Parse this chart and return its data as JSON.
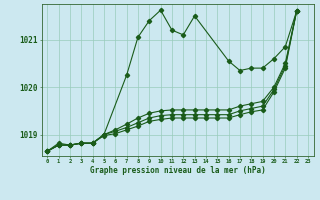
{
  "title": "Graphe pression niveau de la mer (hPa)",
  "background_color": "#cce8f0",
  "grid_color": "#99ccbb",
  "line_color": "#1a5c1a",
  "ylim": [
    1018.55,
    1021.75
  ],
  "xlim": [
    -0.5,
    23.5
  ],
  "yticks": [
    1019,
    1020,
    1021
  ],
  "xlabel_color": "#1a5c1a",
  "series1_x": [
    0,
    1,
    2,
    3,
    4,
    5,
    7,
    8,
    9,
    10,
    11,
    12,
    13,
    16,
    17,
    18,
    19,
    20,
    21,
    22
  ],
  "series1_y": [
    1018.65,
    1018.82,
    1018.78,
    1018.82,
    1018.82,
    1019.0,
    1020.25,
    1021.05,
    1021.4,
    1021.62,
    1021.2,
    1021.1,
    1021.5,
    1020.55,
    1020.35,
    1020.4,
    1020.4,
    1020.6,
    1020.85,
    1021.6
  ],
  "series2_x": [
    0,
    1,
    2,
    3,
    4,
    5,
    6,
    7,
    8,
    9,
    10,
    11,
    12,
    13,
    14,
    15,
    16,
    17,
    18,
    19,
    20,
    21,
    22
  ],
  "series2_y": [
    1018.65,
    1018.78,
    1018.78,
    1018.82,
    1018.82,
    1019.0,
    1019.1,
    1019.22,
    1019.35,
    1019.45,
    1019.5,
    1019.52,
    1019.52,
    1019.52,
    1019.52,
    1019.52,
    1019.52,
    1019.6,
    1019.65,
    1019.7,
    1020.0,
    1020.5,
    1021.6
  ],
  "series3_x": [
    0,
    1,
    2,
    3,
    4,
    5,
    6,
    7,
    8,
    9,
    10,
    11,
    12,
    13,
    14,
    15,
    16,
    17,
    18,
    19,
    20,
    21,
    22
  ],
  "series3_y": [
    1018.65,
    1018.78,
    1018.78,
    1018.82,
    1018.82,
    1019.0,
    1019.07,
    1019.15,
    1019.25,
    1019.35,
    1019.4,
    1019.42,
    1019.42,
    1019.42,
    1019.42,
    1019.42,
    1019.42,
    1019.5,
    1019.55,
    1019.6,
    1019.95,
    1020.45,
    1021.6
  ],
  "series4_x": [
    0,
    1,
    2,
    3,
    4,
    5,
    6,
    7,
    8,
    9,
    10,
    11,
    12,
    13,
    14,
    15,
    16,
    17,
    18,
    19,
    20,
    21,
    22
  ],
  "series4_y": [
    1018.65,
    1018.78,
    1018.78,
    1018.82,
    1018.82,
    1018.98,
    1019.02,
    1019.1,
    1019.18,
    1019.28,
    1019.32,
    1019.35,
    1019.35,
    1019.35,
    1019.35,
    1019.35,
    1019.35,
    1019.42,
    1019.48,
    1019.52,
    1019.9,
    1020.4,
    1021.6
  ]
}
